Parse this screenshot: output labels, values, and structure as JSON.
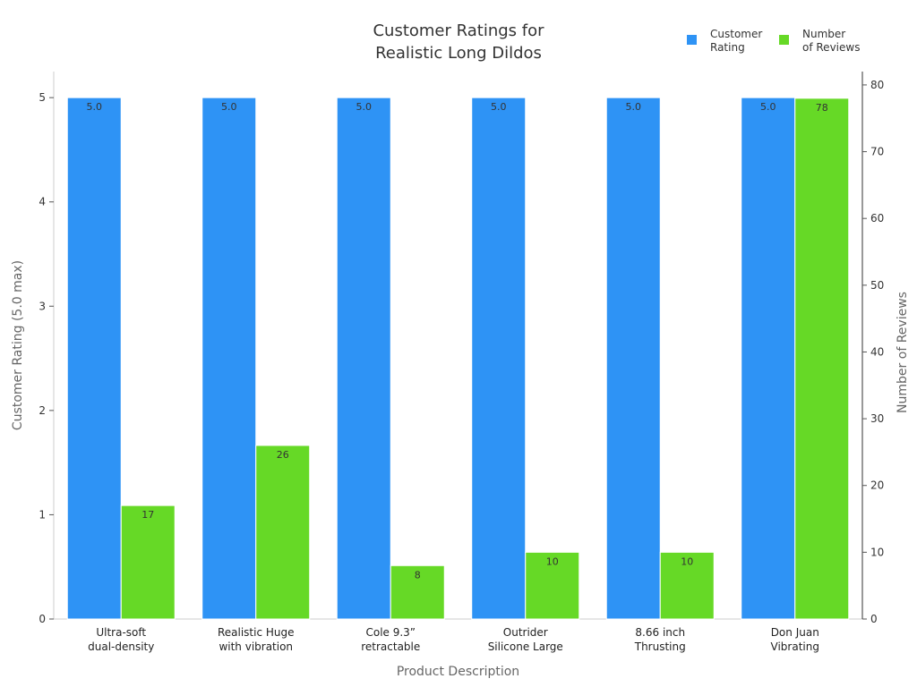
{
  "chart_data": {
    "type": "bar",
    "title": [
      "Customer Ratings for",
      "Realistic Long Dildos"
    ],
    "xlabel": "Product Description",
    "ylabel_left": "Customer Rating (5.0 max)",
    "ylabel_right": "Number of Reviews",
    "categories": [
      [
        "Ultra-soft",
        "dual-density"
      ],
      [
        "Realistic Huge",
        "with vibration"
      ],
      [
        "Cole 9.3”",
        "retractable"
      ],
      [
        "Outrider",
        "Silicone Large"
      ],
      [
        "8.66 inch",
        "Thrusting"
      ],
      [
        "Don Juan",
        "Vibrating"
      ]
    ],
    "series": [
      {
        "name": [
          "Customer",
          "Rating"
        ],
        "axis": "left",
        "color": "#2e93f5",
        "values": [
          5.0,
          5.0,
          5.0,
          5.0,
          5.0,
          5.0
        ],
        "labels": [
          "5.0",
          "5.0",
          "5.0",
          "5.0",
          "5.0",
          "5.0"
        ]
      },
      {
        "name": [
          "Number",
          "of Reviews"
        ],
        "axis": "right",
        "color": "#66d926",
        "values": [
          17,
          26,
          8,
          10,
          10,
          78
        ],
        "labels": [
          "17",
          "26",
          "8",
          "10",
          "10",
          "78"
        ]
      }
    ],
    "ylim_left": [
      0,
      5.25
    ],
    "yticks_left": [
      "0",
      "1",
      "2",
      "3",
      "4",
      "5"
    ],
    "ylim_right": [
      0,
      82
    ],
    "yticks_right": [
      "0",
      "10",
      "20",
      "30",
      "40",
      "50",
      "60",
      "70",
      "80"
    ],
    "grid": false,
    "legend": "top-right"
  }
}
